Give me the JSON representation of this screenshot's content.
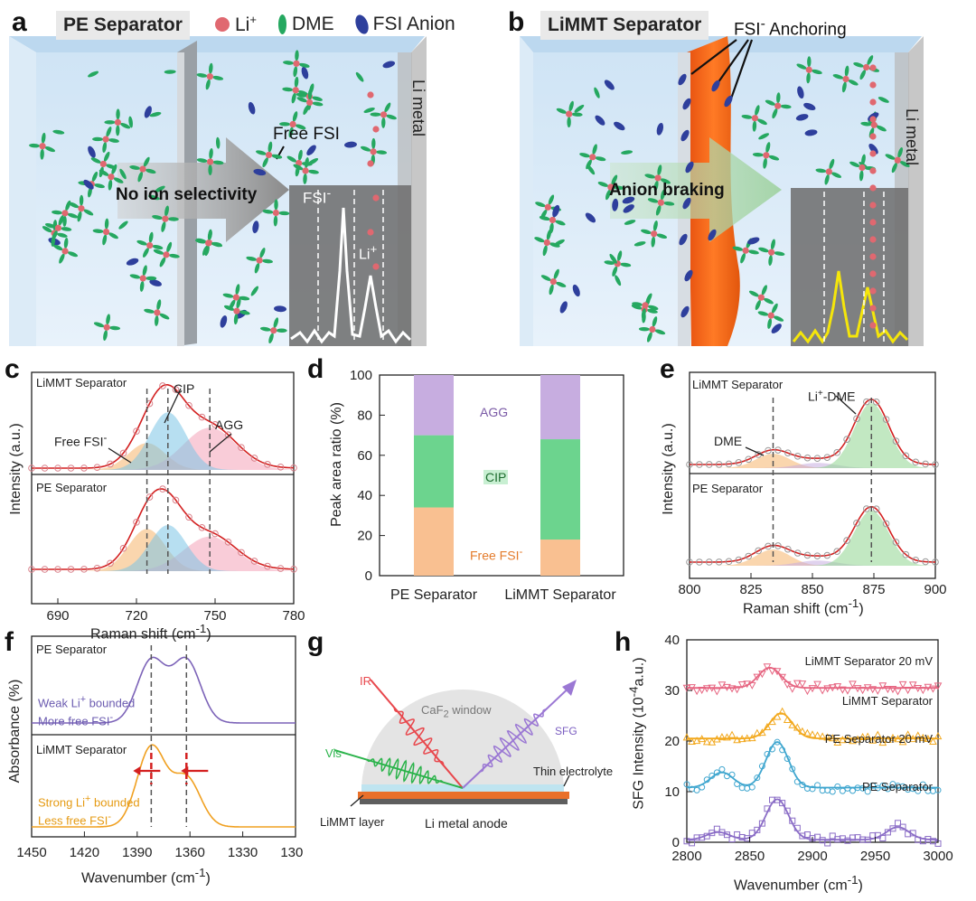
{
  "figure": {
    "panel_labels": [
      "a",
      "b",
      "c",
      "d",
      "e",
      "f",
      "g",
      "h"
    ],
    "legend": {
      "li": "Li",
      "li_sup": "+",
      "dme": "DME",
      "fsi": "FSI Anion"
    },
    "colors": {
      "li": "#e06870",
      "dme": "#25a860",
      "fsi": "#2e3f9c",
      "raman_fit": "#d32020",
      "free_fsi": "#f6b46c",
      "cip": "#7cc4e6",
      "agg": "#f4a2b8",
      "d_agg": "#c7ade0",
      "d_cip": "#6cd48e",
      "d_free": "#f9c091",
      "purple": "#7c63b8",
      "orange": "#f0a020"
    }
  },
  "panel_a": {
    "title": "PE Separator",
    "arrow_text": "No ion selectivity",
    "free_fsi": "Free FSI",
    "fsi_label": "FSI",
    "fsi_sup": "-",
    "li_label": "Li",
    "li_sup": "+",
    "metal_label": "Li metal"
  },
  "panel_b": {
    "title": "LiMMT Separator",
    "anchoring": "FSI",
    "anchoring_sup": "-",
    "anchoring_rest": " Anchoring",
    "arrow_text": "Anion braking",
    "metal_label": "Li metal"
  },
  "panel_c": {
    "top_label": "LiMMT Separator",
    "bottom_label": "PE Separator",
    "annot_cip": "CIP",
    "annot_agg": "AGG",
    "annot_free": "Free FSI",
    "annot_free_sup": "-",
    "ylabel": "Intensity (a.u.)",
    "xlabel": "Raman shift (cm",
    "xlabel_sup": "-1",
    "xlabel_end": ")",
    "xticks": [
      "690",
      "720",
      "750",
      "780"
    ]
  },
  "panel_d": {
    "ylabel": "Peak area ratio (%)",
    "yticks": [
      "0",
      "20",
      "40",
      "60",
      "80",
      "100"
    ],
    "xticks": [
      "PE Separator",
      "LiMMT Separator"
    ],
    "label_agg": "AGG",
    "label_cip": "CIP",
    "label_free": "Free FSI",
    "label_free_sup": "-"
  },
  "panel_e": {
    "top_label": "LiMMT Separator",
    "bottom_label": "PE Separator",
    "annot_dme": "DME",
    "annot_li_dme": "Li",
    "annot_li_dme_sup": "+",
    "annot_li_dme_rest": "-DME",
    "ylabel": "Intensity (a.u.)",
    "xlabel": "Raman shift  (cm",
    "xlabel_sup": "-1",
    "xlabel_end": ")",
    "xticks": [
      "800",
      "825",
      "850",
      "875",
      "900"
    ]
  },
  "panel_f": {
    "top_label": "PE Separator",
    "bottom_label": "LiMMT Separator",
    "top_note1": "Weak Li",
    "top_note1_sup": "+",
    "top_note1_rest": " bounded",
    "top_note2": "More free FSI",
    "top_note2_sup": "-",
    "bottom_note1": "Strong Li",
    "bottom_note1_sup": "+",
    "bottom_note1_rest": " bounded",
    "bottom_note2": "Less free FSI",
    "bottom_note2_sup": "-",
    "ylabel": "Absorbance (%)",
    "xlabel": "Wavenumber (cm",
    "xlabel_sup": "-1",
    "xlabel_end": ")",
    "xticks": [
      "1450",
      "1420",
      "1390",
      "1360",
      "1330",
      "1300"
    ]
  },
  "panel_g": {
    "ir": "IR",
    "vis": "Vis",
    "window": "CaF",
    "window_sub": "2",
    "window_rest": " window",
    "sfg": "SFG",
    "thin": "Thin electrolyte",
    "layer": "LiMMT layer",
    "anode": "Li metal anode"
  },
  "panel_h": {
    "ylabel": "SFG Intensity (10",
    "ylabel_sup": "-4",
    "ylabel_end": "a.u.)",
    "xlabel": "Wavenumber (cm",
    "xlabel_sup": "-1",
    "xlabel_end": ")",
    "xticks": [
      "2800",
      "2850",
      "2900",
      "2950",
      "3000"
    ],
    "yticks": [
      "0",
      "10",
      "20",
      "30",
      "40"
    ],
    "series_labels": [
      "LiMMT Separator 20 mV",
      "LiMMT Separator",
      "PE Separator 20 mV",
      "PE Separator"
    ]
  },
  "chart_data": [
    {
      "type": "bar",
      "panel": "d",
      "stacked": true,
      "categories": [
        "PE Separator",
        "LiMMT Separator"
      ],
      "series": [
        {
          "name": "Free FSI-",
          "values": [
            34,
            18
          ]
        },
        {
          "name": "CIP",
          "values": [
            36,
            50
          ]
        },
        {
          "name": "AGG",
          "values": [
            30,
            32
          ]
        }
      ],
      "ylabel": "Peak area ratio (%)",
      "ylim": [
        0,
        100
      ]
    },
    {
      "type": "line",
      "panel": "c",
      "xlabel": "Raman shift (cm-1)",
      "ylabel": "Intensity (a.u.)",
      "xlim": [
        680,
        780
      ],
      "peak_positions": {
        "free_fsi": 724,
        "cip": 732,
        "agg": 748
      },
      "series": [
        {
          "name": "LiMMT Separator",
          "components": {
            "free_fsi": 0.35,
            "cip": 0.75,
            "agg": 0.55
          }
        },
        {
          "name": "PE Separator",
          "components": {
            "free_fsi": 0.55,
            "cip": 0.6,
            "agg": 0.45
          }
        }
      ]
    },
    {
      "type": "line",
      "panel": "e",
      "xlabel": "Raman shift (cm-1)",
      "ylabel": "Intensity (a.u.)",
      "xlim": [
        800,
        900
      ],
      "peak_positions": {
        "dme": 834,
        "li_dme": 874
      },
      "series": [
        {
          "name": "LiMMT Separator",
          "components": {
            "dme": 0.22,
            "li_dme": 1.0
          }
        },
        {
          "name": "PE Separator",
          "components": {
            "dme": 0.25,
            "li_dme": 0.85
          }
        }
      ]
    },
    {
      "type": "line",
      "panel": "f",
      "xlabel": "Wavenumber (cm-1)",
      "ylabel": "Absorbance (%)",
      "xlim": [
        1450,
        1300
      ],
      "peak_positions": [
        1382,
        1362
      ],
      "series": [
        {
          "name": "PE Separator",
          "peak_heights": [
            0.75,
            0.75
          ]
        },
        {
          "name": "LiMMT Separator",
          "peak_heights": [
            0.9,
            0.55
          ]
        }
      ]
    },
    {
      "type": "line",
      "panel": "h",
      "xlabel": "Wavenumber (cm-1)",
      "ylabel": "SFG Intensity (10-4 a.u.)",
      "xlim": [
        2800,
        3000
      ],
      "ylim": [
        0,
        40
      ],
      "series": [
        {
          "name": "LiMMT Separator 20 mV",
          "baseline": 30.5,
          "peaks": [
            [
              2866,
              4
            ]
          ]
        },
        {
          "name": "LiMMT Separator",
          "baseline": 20.5,
          "peaks": [
            [
              2875,
              5
            ]
          ]
        },
        {
          "name": "PE Separator 20 mV",
          "baseline": 10.8,
          "peaks": [
            [
              2828,
              3
            ],
            [
              2872,
              9
            ]
          ]
        },
        {
          "name": "PE Separator",
          "baseline": 0.5,
          "peaks": [
            [
              2825,
              1.5
            ],
            [
              2872,
              8
            ],
            [
              2968,
              2.5
            ]
          ]
        }
      ]
    }
  ]
}
